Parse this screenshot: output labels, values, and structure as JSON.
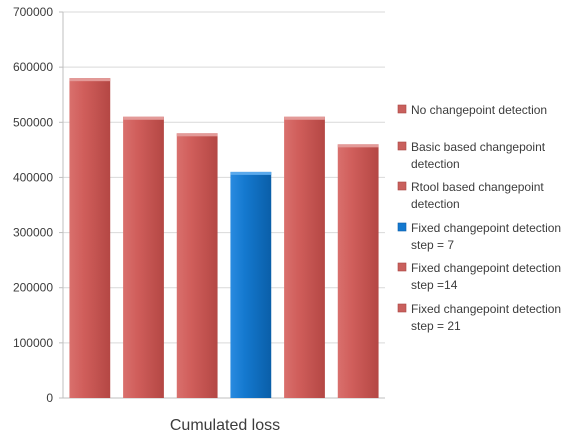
{
  "chart_data": {
    "type": "bar",
    "categories": [
      "Cumulated loss"
    ],
    "xlabel": "Cumulated loss",
    "ylim": [
      0,
      700000
    ],
    "yticks": [
      0,
      100000,
      200000,
      300000,
      400000,
      500000,
      600000,
      700000
    ],
    "grid": true,
    "legend_position": "right",
    "series": [
      {
        "name": "No changepoint detection",
        "values": [
          580000
        ],
        "color": "#c0504d",
        "legend_lines": [
          "No changepoint detection"
        ]
      },
      {
        "name": "Basic based changepoint detection",
        "values": [
          510000
        ],
        "color": "#c0504d",
        "legend_lines": [
          "Basic based changepoint",
          "detection"
        ]
      },
      {
        "name": "Rtool based changepoint detection",
        "values": [
          480000
        ],
        "color": "#c0504d",
        "legend_lines": [
          "Rtool based changepoint",
          "detection"
        ]
      },
      {
        "name": "Fixed changepoint detection step = 7",
        "values": [
          410000
        ],
        "color": "#0070c0",
        "legend_lines": [
          "Fixed changepoint detection",
          "step = 7"
        ]
      },
      {
        "name": "Fixed changepoint detection step =14",
        "values": [
          510000
        ],
        "color": "#c0504d",
        "legend_lines": [
          "Fixed changepoint detection",
          "step =14"
        ]
      },
      {
        "name": "Fixed changepoint detection step = 21",
        "values": [
          460000
        ],
        "color": "#c0504d",
        "legend_lines": [
          "Fixed changepoint detection",
          "step = 21"
        ]
      }
    ]
  }
}
